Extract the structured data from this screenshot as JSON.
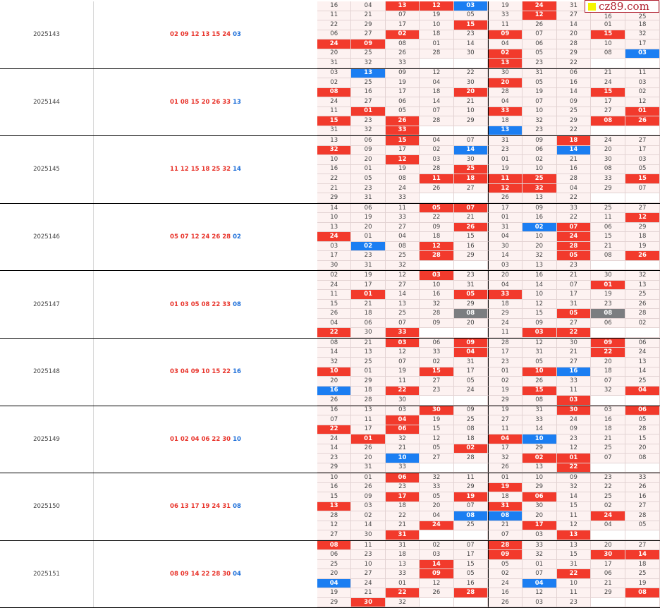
{
  "watermark": {
    "text": "cz89.com"
  },
  "colors": {
    "red": "#f23a2c",
    "blue": "#1b7ef2",
    "gray": "#7b7d80"
  },
  "periods": [
    {
      "issue": "2025143",
      "red": [
        "02",
        "09",
        "12",
        "13",
        "15",
        "24"
      ],
      "blue": "03",
      "rows": [
        "16 04 13r 12r 03b 19 24r 31 - -",
        "11 21 07 19 05 33 12r 27 16 25",
        "22 29 17 10 15r 11 26 14 01 18",
        "06 27 02r 18 23 09r 07 20 15r 32",
        "24r 09r 08 01 14 04 06 28 10 17",
        "20 25 26 28 30 02r 05 29 08 03b",
        "31 32 33 - - 13r 23 22 - -"
      ]
    },
    {
      "issue": "2025144",
      "red": [
        "01",
        "08",
        "15",
        "20",
        "26",
        "33"
      ],
      "blue": "13",
      "rows": [
        "03 13b 09 12 22 30 31 06 21 11",
        "02 25 19 04 30 20r 05 16 24 03",
        "08r 16 17 18 20r 28 19 14 15r 02",
        "24 27 06 14 21 04 07 09 17 12",
        "11 01r 05 07 10 33r 10 25 27 01r",
        "15r 23 26r 28 29 18 32 29 08r 26r",
        "31 32 33r - - 13b 23 22 - -"
      ]
    },
    {
      "issue": "2025145",
      "red": [
        "11",
        "12",
        "15",
        "18",
        "25",
        "32"
      ],
      "blue": "14",
      "rows": [
        "13 06 15r 04 07 31 09 18r 24 27",
        "32r 09 17 02 14b 23 06 14b 20 17",
        "10 20 12r 03 30 01 02 21 30 03",
        "16 01 19 28 25r 19 10 16 08 05",
        "22 05 08 11r 18r 11r 25r 28 33 15r",
        "21 23 24 26 27 12r 32r 04 29 07",
        "29 31 33 - - 26 13 22 - -"
      ]
    },
    {
      "issue": "2025146",
      "red": [
        "05",
        "07",
        "12",
        "24",
        "26",
        "28"
      ],
      "blue": "02",
      "rows": [
        "14 06 11 05r 07r 17 09 33 25 27",
        "10 19 33 22 21 01 16 22 11 12r",
        "13 20 27 09 26r 31 02b 07r 06 29",
        "24r 01 04 18 15 04 10 24r 15 18",
        "03 02b 08 12r 16 30 20 28r 21 19",
        "17 23 25 28r 29 14 32 05r 08 26r",
        "30 31 32 - - 03 13 23 - -"
      ]
    },
    {
      "issue": "2025147",
      "red": [
        "01",
        "03",
        "05",
        "08",
        "22",
        "33"
      ],
      "blue": "08",
      "rows": [
        "02 19 12 03r 23 20 16 21 30 32",
        "24 17 27 10 31 04 14 07 01r 13",
        "11 01r 14 16 05r 33r 10 17 19 25",
        "15 21 13 32 29 18 12 31 23 26",
        "26 18 25 28 08g 29 15 05r 08g 28",
        "04 06 07 09 20 24 09 27 06 02",
        "22r 30 33r - - 11 03r 22r - -"
      ]
    },
    {
      "issue": "2025148",
      "red": [
        "03",
        "04",
        "09",
        "10",
        "15",
        "22"
      ],
      "blue": "16",
      "rows": [
        "08 21 03r 06 09r 28 12 30 09r 06",
        "14 13 12 33 04r 17 31 21 22r 24",
        "32 25 07 02 31 23 05 27 20 13",
        "10r 01 19 15r 17 01 10r 16b 18 14",
        "20 29 11 27 05 02 26 33 07 25",
        "16b 18 22r 23 24 19 15r 11 32 04r",
        "26 28 30 - - 29 08 03r - -"
      ]
    },
    {
      "issue": "2025149",
      "red": [
        "01",
        "02",
        "04",
        "06",
        "22",
        "30"
      ],
      "blue": "10",
      "rows": [
        "16 13 03 30r 09 19 31 30r 03 06r",
        "07 11 04r 19 25 27 33 24 16 05",
        "22r 17 06r 15 08 11 14 09 18 28",
        "24 01r 32 12 18 04r 10b 23 21 15",
        "14 26 21 05 02r 17 29 12 25 20",
        "23 20 10b 27 28 32 02r 01r 07 08",
        "29 31 33 - - 26 13 22r - -"
      ]
    },
    {
      "issue": "2025150",
      "red": [
        "06",
        "13",
        "17",
        "19",
        "24",
        "31"
      ],
      "blue": "08",
      "rows": [
        "10 01 06r 32 11 01 10 09 23 33",
        "16 26 23 33 29 19r 29 32 22 26",
        "15 09 17r 05 19r 18 06r 14 25 16",
        "13r 03 18 20 07 31r 30 15 02 27",
        "28 02 22 04 08b 08b 20 11 24r 28",
        "12 14 21 24r 25 21 17r 12 04 05",
        "27 30 31r - - 07 03 13r - -"
      ]
    },
    {
      "issue": "2025151",
      "red": [
        "08",
        "09",
        "14",
        "22",
        "28",
        "30"
      ],
      "blue": "04",
      "rows": [
        "08r 11 31 02 07 28r 33 13 20 27",
        "06 23 18 03 17 09r 32 15 30r 14r",
        "25 10 13 14r 15 05 01 31 17 18",
        "20 27 33 09r 05 02 07 22r 06 25",
        "04b 24 01 12 16 24 04b 10 21 19",
        "19 21 22r 26 28r 16 12 11 29 08r",
        "29 30r 32 - - 26 03 23 - -"
      ]
    }
  ]
}
